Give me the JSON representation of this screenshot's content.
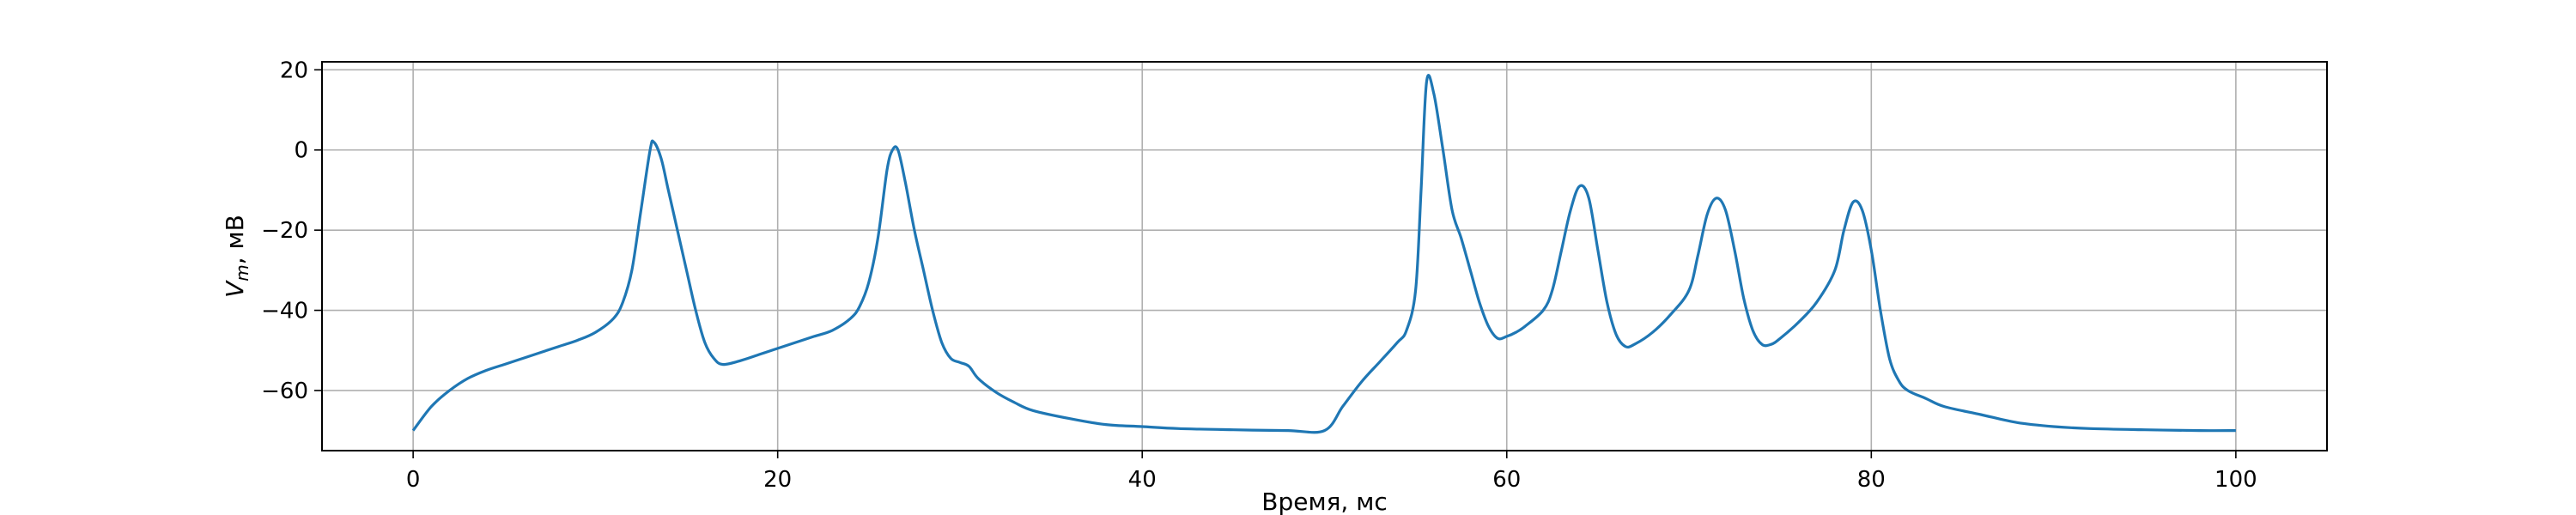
{
  "chart_data": {
    "type": "line",
    "title": "",
    "xlabel": "Время, мс",
    "ylabel_main": "V",
    "ylabel_sub": "m",
    "ylabel_rest": ", мВ",
    "xlim": [
      -5,
      105
    ],
    "ylim": [
      -75,
      22
    ],
    "xticks": [
      0,
      20,
      40,
      60,
      80,
      100
    ],
    "yticks": [
      -60,
      -40,
      -20,
      0,
      20
    ],
    "xtick_labels": [
      "0",
      "20",
      "40",
      "60",
      "80",
      "100"
    ],
    "ytick_labels": [
      "−60",
      "−40",
      "−20",
      "0",
      "20"
    ],
    "grid": true,
    "line_color": "#1f77b4",
    "grid_color": "#b0b0b0",
    "series": [
      {
        "x": [
          0,
          1,
          2,
          3,
          4,
          5,
          6,
          7,
          8,
          9,
          10,
          11,
          11.5,
          12,
          12.5,
          13,
          13.2,
          13.6,
          14,
          14.5,
          15,
          15.5,
          16,
          16.5,
          17,
          18,
          19,
          20,
          21,
          22,
          23,
          24,
          24.5,
          25,
          25.5,
          26,
          26.3,
          26.6,
          27,
          27.5,
          28,
          28.5,
          29,
          29.5,
          30,
          30.5,
          31,
          32,
          33,
          34,
          36,
          38,
          40,
          42,
          45,
          48,
          50,
          51,
          52,
          53,
          54,
          54.5,
          55,
          55.3,
          55.6,
          56,
          56.5,
          57,
          57.5,
          58,
          58.5,
          59,
          59.5,
          60,
          60.5,
          61,
          62,
          62.5,
          63,
          63.5,
          64,
          64.5,
          65,
          65.5,
          66,
          66.5,
          67,
          68,
          69,
          70,
          70.5,
          71,
          71.5,
          72,
          72.5,
          73,
          73.5,
          74,
          74.5,
          75,
          76,
          77,
          78,
          78.5,
          79,
          79.5,
          80,
          80.5,
          81,
          81.5,
          82,
          83,
          84,
          86,
          88,
          90,
          92,
          95,
          98,
          100
        ],
        "y": [
          -70,
          -64,
          -60,
          -57,
          -55,
          -53.5,
          -52,
          -50.5,
          -49,
          -47.5,
          -45.5,
          -42,
          -38,
          -30,
          -15,
          0,
          2,
          -2,
          -10,
          -20,
          -30,
          -40,
          -48,
          -52,
          -53.5,
          -52.5,
          -51,
          -49.5,
          -48,
          -46.5,
          -45,
          -42,
          -39,
          -33,
          -22,
          -5,
          0,
          0,
          -8,
          -20,
          -30,
          -40,
          -48,
          -52,
          -53,
          -54,
          -57,
          -60.5,
          -63,
          -65,
          -67,
          -68.5,
          -69,
          -69.5,
          -69.8,
          -70,
          -70,
          -64,
          -58,
          -53,
          -48,
          -45,
          -35,
          -10,
          17,
          14,
          0,
          -15,
          -22,
          -30,
          -38,
          -44,
          -47,
          -46.5,
          -45.5,
          -44,
          -40,
          -35,
          -25,
          -15,
          -9,
          -12,
          -25,
          -38,
          -46,
          -49,
          -48.5,
          -45.5,
          -41,
          -35,
          -26,
          -16,
          -12,
          -15,
          -25,
          -37,
          -45,
          -48.5,
          -48.5,
          -47,
          -43,
          -38,
          -30,
          -20,
          -13,
          -15,
          -25,
          -40,
          -52,
          -57.5,
          -60,
          -62,
          -64,
          -66,
          -68,
          -69,
          -69.5,
          -69.8,
          -70,
          -70
        ]
      }
    ]
  }
}
